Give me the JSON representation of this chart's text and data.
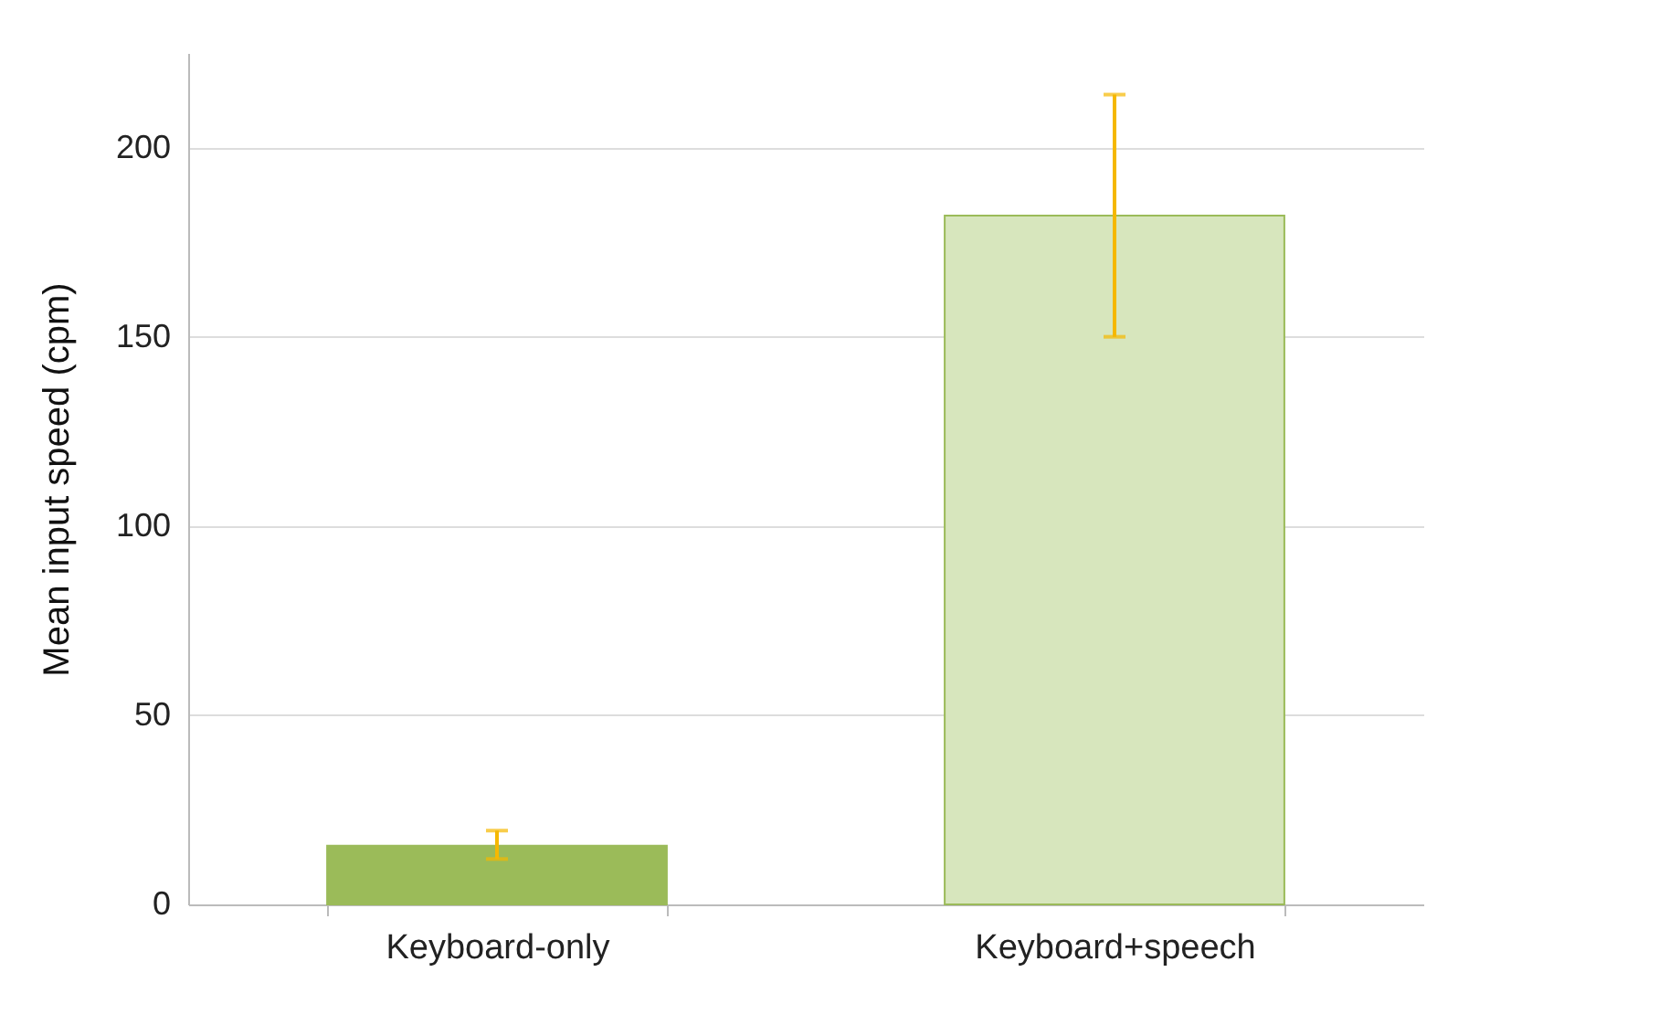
{
  "chart_data": {
    "type": "bar",
    "ylabel": "Mean input speed (cpm)",
    "categories": [
      "Keyboard-only",
      "Keyboard+speech"
    ],
    "values": [
      15.5,
      182
    ],
    "colors": [
      "#9bbb59",
      "#d7e6bd"
    ],
    "errors": [
      [
        12,
        19.5
      ],
      [
        150,
        214
      ]
    ],
    "ylim": [
      0,
      225
    ],
    "yticks": [
      0,
      50,
      100,
      150,
      200
    ],
    "grid": "y"
  }
}
